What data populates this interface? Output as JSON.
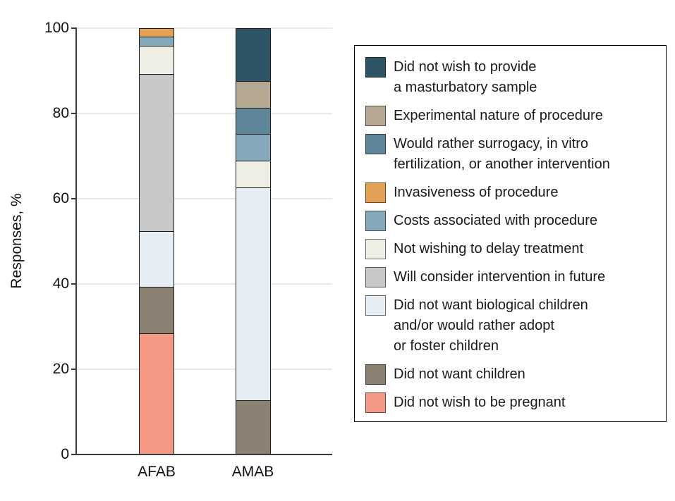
{
  "chart_data": {
    "type": "bar",
    "subtype": "stacked-vertical",
    "title": "",
    "ylabel": "Responses, %",
    "xlabel": "",
    "ylim": [
      0,
      100
    ],
    "yticks": [
      0,
      20,
      40,
      60,
      80,
      100
    ],
    "grid": true,
    "legend_position": "right",
    "categories": [
      "AFAB",
      "AMAB"
    ],
    "series": [
      {
        "name": "Did not wish to provide a masturbatory sample",
        "label_lines": [
          "Did not wish to provide",
          "a masturbatory sample"
        ],
        "color": "#2e5565",
        "values": [
          0,
          12.5
        ]
      },
      {
        "name": "Experimental nature of procedure",
        "label_lines": [
          "Experimental nature of procedure"
        ],
        "color": "#b4a892",
        "values": [
          0,
          6.25
        ]
      },
      {
        "name": "Would rather surrogacy, in vitro fertilization, or another intervention",
        "label_lines": [
          "Would rather surrogacy, in vitro",
          "fertilization, or another intervention"
        ],
        "color": "#5f8598",
        "values": [
          0,
          6.25
        ]
      },
      {
        "name": "Invasiveness of procedure",
        "label_lines": [
          "Invasiveness of procedure"
        ],
        "color": "#e3a156",
        "values": [
          2.17,
          0
        ]
      },
      {
        "name": "Costs associated with procedure",
        "label_lines": [
          "Costs associated with procedure"
        ],
        "color": "#85a9ba",
        "values": [
          2.17,
          6.25
        ]
      },
      {
        "name": "Not wishing to delay treatment",
        "label_lines": [
          "Not wishing to delay treatment"
        ],
        "color": "#efeee4",
        "values": [
          6.52,
          6.25
        ]
      },
      {
        "name": "Will consider intervention in future",
        "label_lines": [
          "Will consider intervention in future"
        ],
        "color": "#c7c8ca",
        "values": [
          36.96,
          0
        ]
      },
      {
        "name": "Did not want biological children and/or would rather adopt or foster children",
        "label_lines": [
          "Did not want biological children",
          "and/or would rather adopt",
          "or foster children"
        ],
        "color": "#e6eef3",
        "values": [
          13.04,
          50
        ]
      },
      {
        "name": "Did not want children",
        "label_lines": [
          "Did not want children"
        ],
        "color": "#8a8173",
        "values": [
          10.87,
          12.5
        ]
      },
      {
        "name": "Did not wish to be pregnant",
        "label_lines": [
          "Did not wish to be pregnant"
        ],
        "color": "#f29a84",
        "values": [
          28.26,
          0
        ]
      }
    ]
  }
}
